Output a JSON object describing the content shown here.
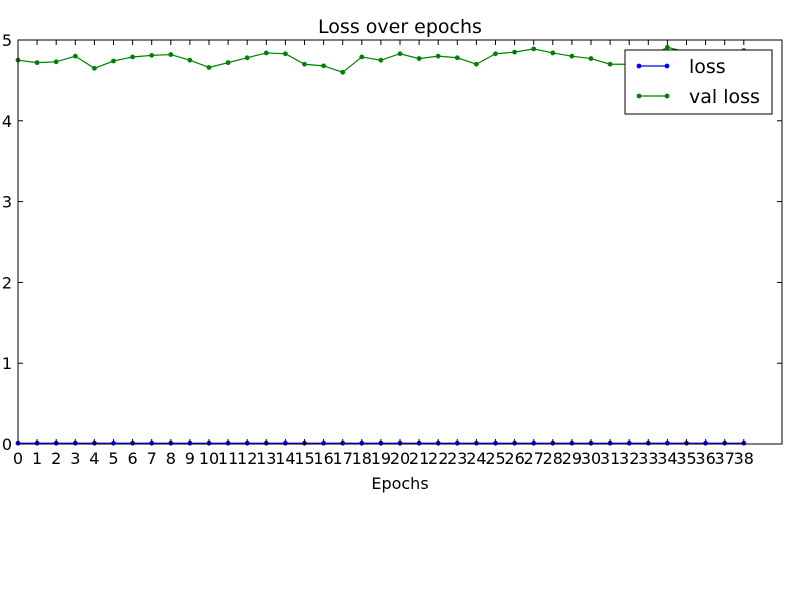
{
  "chart_data": {
    "type": "line",
    "title": "Loss over epochs",
    "xlabel": "Epochs",
    "ylabel": "",
    "xlim": [
      0,
      40
    ],
    "ylim": [
      0,
      5
    ],
    "xticks": [
      0,
      1,
      2,
      3,
      4,
      5,
      6,
      7,
      8,
      9,
      10,
      11,
      12,
      13,
      14,
      15,
      16,
      17,
      18,
      19,
      20,
      21,
      22,
      23,
      24,
      25,
      26,
      27,
      28,
      29,
      30,
      31,
      32,
      33,
      34,
      35,
      36,
      37,
      38
    ],
    "yticks": [
      0,
      1,
      2,
      3,
      4,
      5
    ],
    "grid": false,
    "legend": "top-right",
    "x": [
      0,
      1,
      2,
      3,
      4,
      5,
      6,
      7,
      8,
      9,
      10,
      11,
      12,
      13,
      14,
      15,
      16,
      17,
      18,
      19,
      20,
      21,
      22,
      23,
      24,
      25,
      26,
      27,
      28,
      29,
      30,
      31,
      32,
      33,
      34,
      35,
      36,
      37,
      38
    ],
    "series": [
      {
        "name": "loss",
        "color": "#0000ff",
        "values": [
          0.01,
          0.01,
          0.01,
          0.01,
          0.01,
          0.01,
          0.01,
          0.01,
          0.01,
          0.01,
          0.01,
          0.01,
          0.01,
          0.01,
          0.01,
          0.01,
          0.01,
          0.01,
          0.01,
          0.01,
          0.01,
          0.01,
          0.01,
          0.01,
          0.01,
          0.01,
          0.01,
          0.01,
          0.01,
          0.01,
          0.01,
          0.01,
          0.01,
          0.01,
          0.01,
          0.01,
          0.01,
          0.01,
          0.01
        ]
      },
      {
        "name": "val loss",
        "color": "#008000",
        "values": [
          4.75,
          4.72,
          4.73,
          4.8,
          4.65,
          4.74,
          4.79,
          4.81,
          4.82,
          4.75,
          4.66,
          4.72,
          4.78,
          4.84,
          4.83,
          4.7,
          4.68,
          4.6,
          4.79,
          4.75,
          4.83,
          4.77,
          4.8,
          4.78,
          4.7,
          4.83,
          4.85,
          4.89,
          4.84,
          4.8,
          4.77,
          4.7,
          4.7,
          4.78,
          4.91,
          4.85,
          4.81,
          4.83,
          4.87
        ]
      }
    ]
  }
}
